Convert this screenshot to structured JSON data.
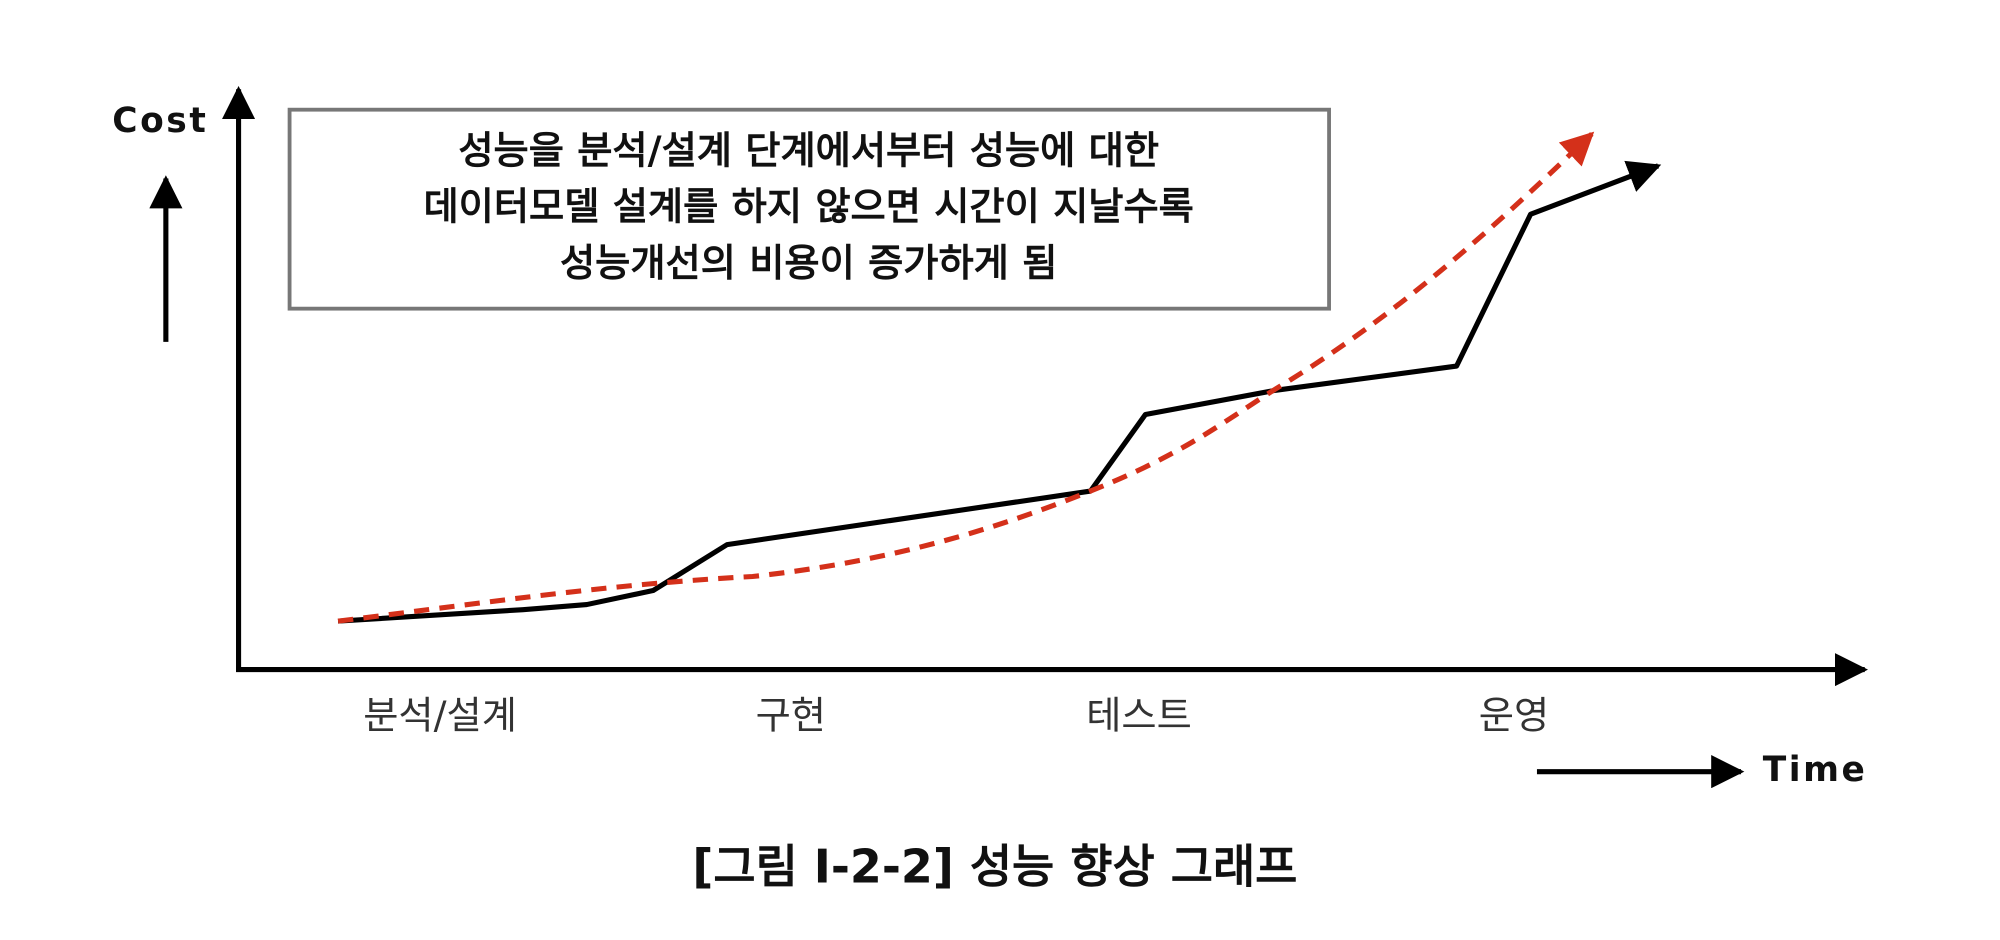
{
  "axes": {
    "y_label": "Cost",
    "x_label": "Time"
  },
  "note": {
    "lines": [
      "성능을 분석/설계 단계에서부터 성능에 대한",
      "데이터모델 설계를 하지 않으면 시간이 지날수록",
      "성능개선의 비용이 증가하게 됨"
    ]
  },
  "stages": [
    "분석/설계",
    "구현",
    "테스트",
    "운영"
  ],
  "caption": "[그림 Ⅰ-2-2] 성능 향상 그래프"
}
